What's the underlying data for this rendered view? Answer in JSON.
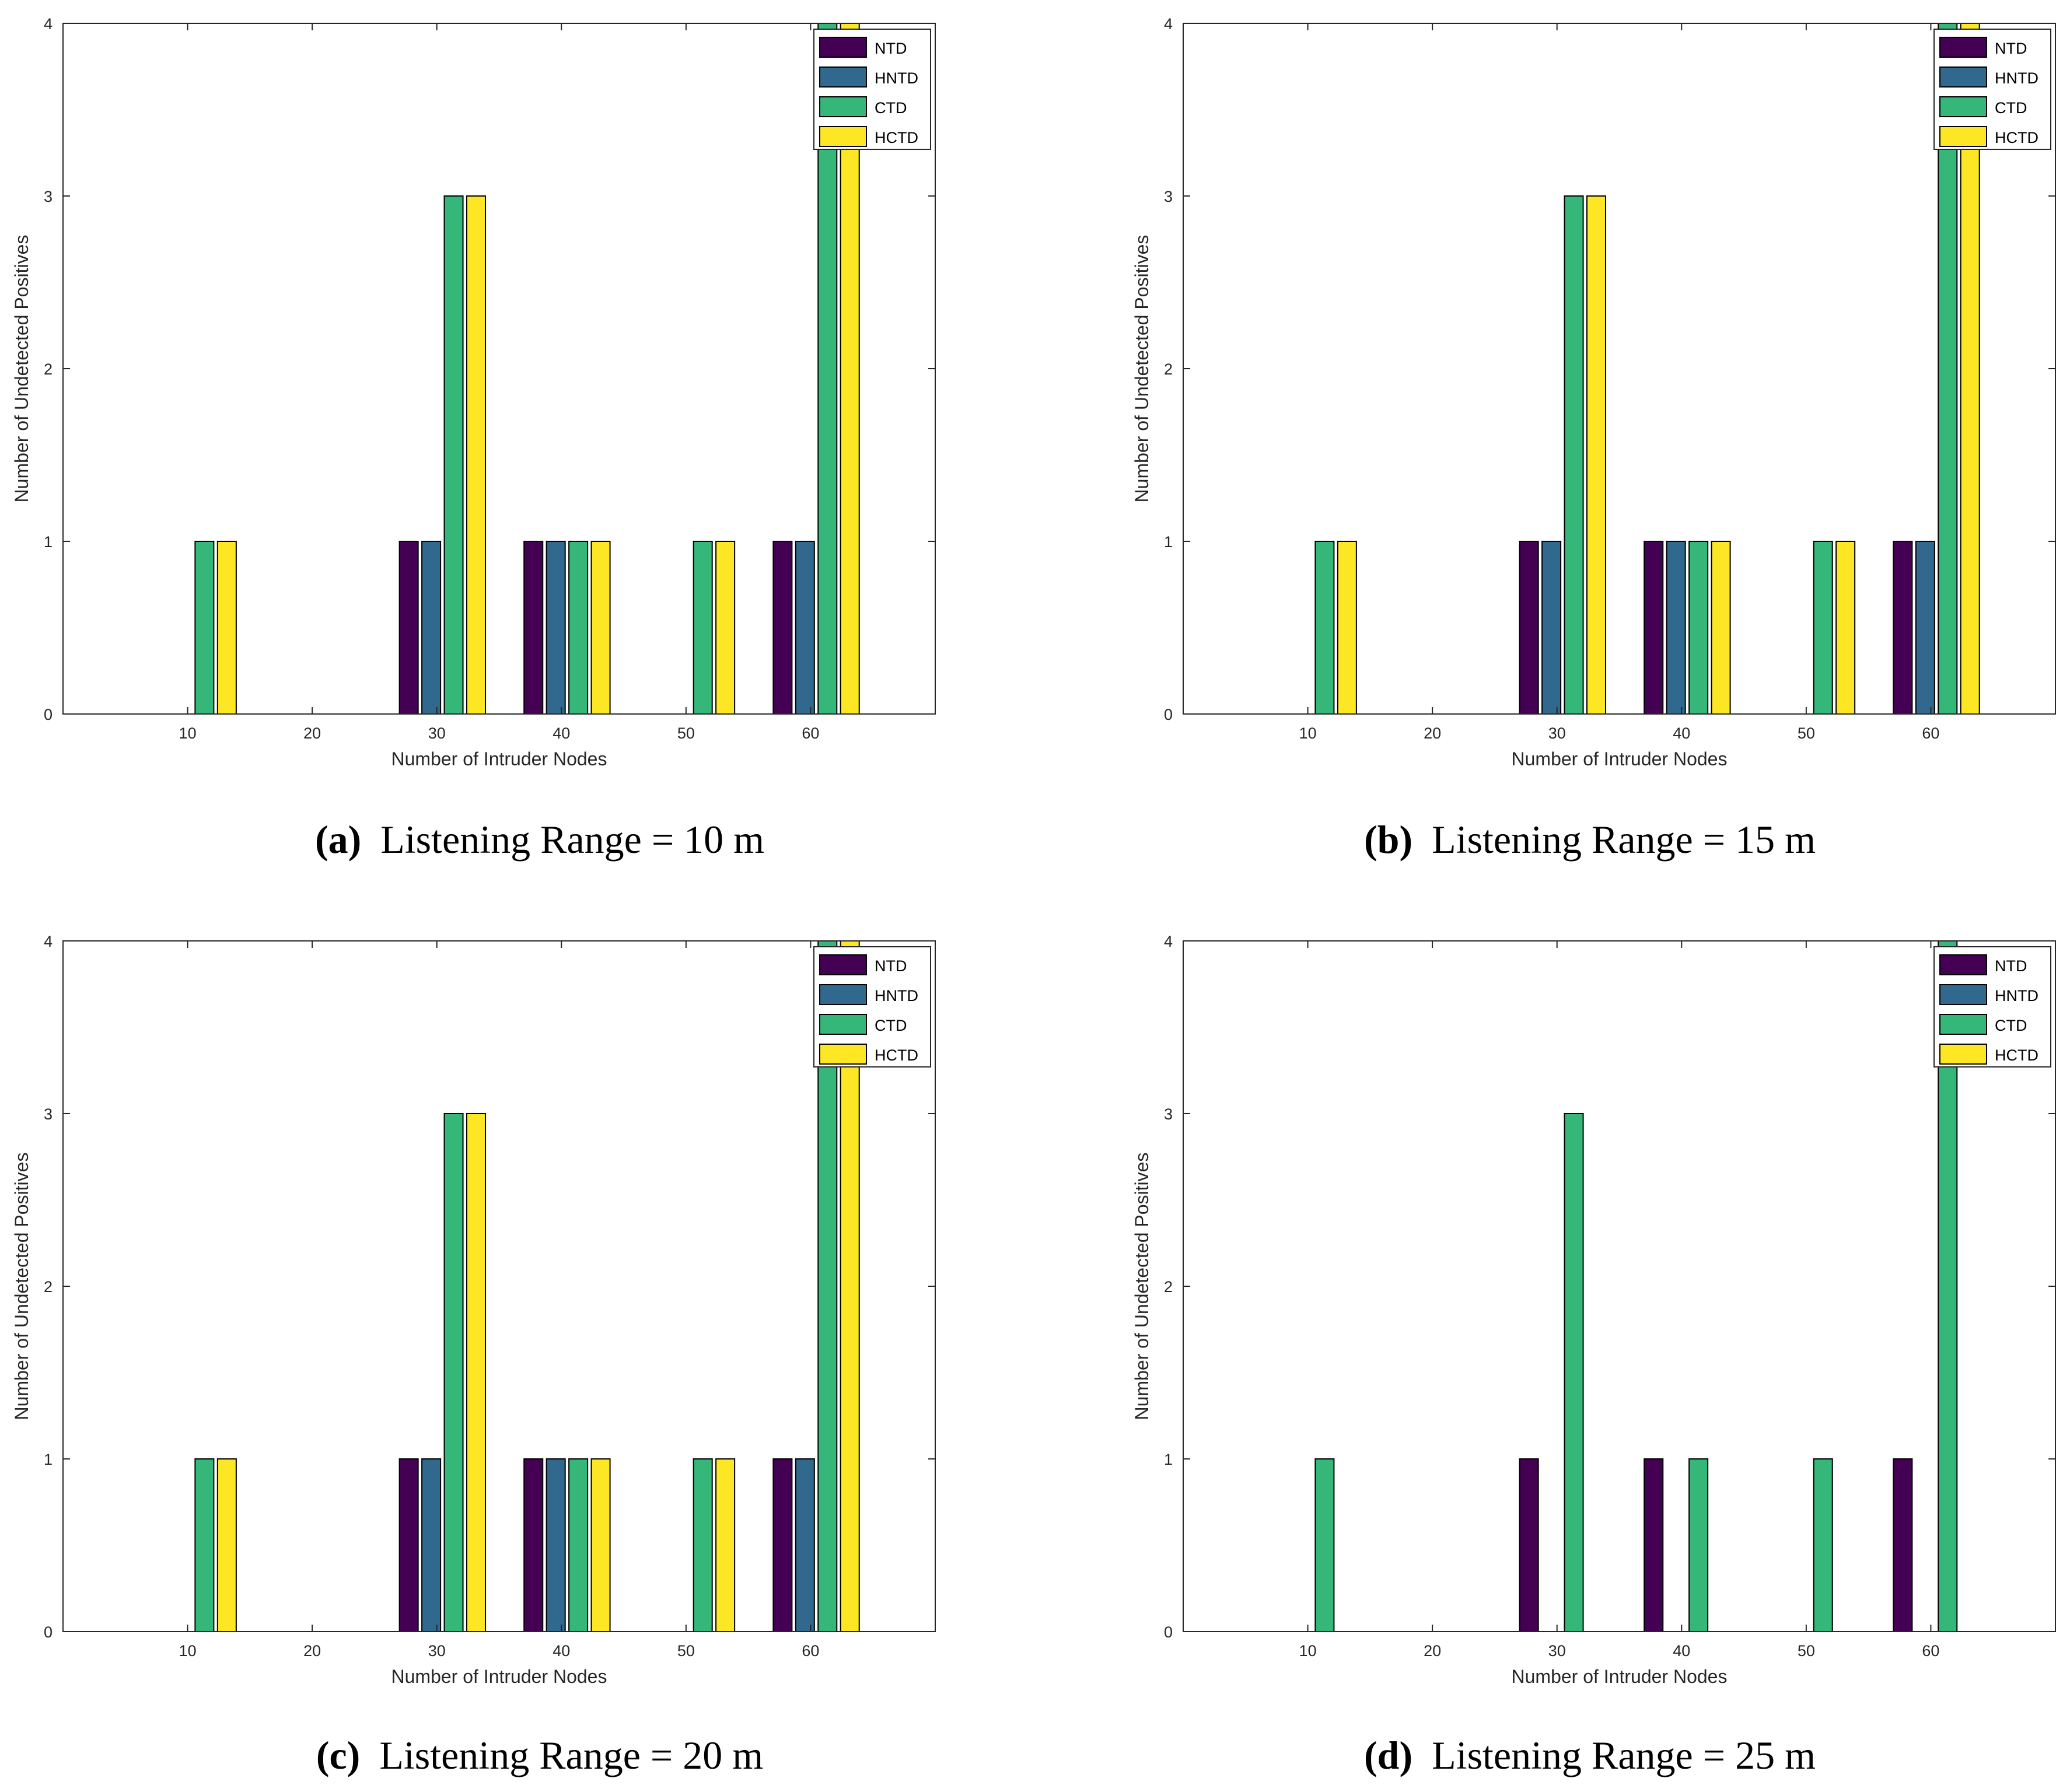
{
  "figure": {
    "panels": [
      {
        "label": "(a)",
        "caption": "Listening Range = 10 m"
      },
      {
        "label": "(b)",
        "caption": "Listening Range = 15 m"
      },
      {
        "label": "(c)",
        "caption": "Listening Range = 20 m"
      },
      {
        "label": "(d)",
        "caption": "Listening Range = 25 m"
      }
    ]
  },
  "colors": {
    "NTD": "#440154",
    "HNTD": "#31688e",
    "CTD": "#35b779",
    "HCTD": "#fde725"
  },
  "chart_data": [
    {
      "type": "bar",
      "title": "",
      "xlabel": "Number of Intruder Nodes",
      "ylabel": "Number of Undetected Positives",
      "categories": [
        10,
        20,
        30,
        40,
        50,
        60
      ],
      "xlim": [
        0,
        70
      ],
      "ylim": [
        0,
        4
      ],
      "yticks": [
        0,
        1,
        2,
        3,
        4
      ],
      "legend_position": "top-right",
      "series": [
        {
          "name": "NTD",
          "values": [
            0,
            0,
            1,
            1,
            0,
            1
          ]
        },
        {
          "name": "HNTD",
          "values": [
            0,
            0,
            1,
            1,
            0,
            1
          ]
        },
        {
          "name": "CTD",
          "values": [
            1,
            0,
            3,
            1,
            1,
            4
          ]
        },
        {
          "name": "HCTD",
          "values": [
            1,
            0,
            3,
            1,
            1,
            4
          ]
        }
      ]
    },
    {
      "type": "bar",
      "title": "",
      "xlabel": "Number of Intruder Nodes",
      "ylabel": "Number of Undetected Positives",
      "categories": [
        10,
        20,
        30,
        40,
        50,
        60
      ],
      "xlim": [
        0,
        70
      ],
      "ylim": [
        0,
        4
      ],
      "yticks": [
        0,
        1,
        2,
        3,
        4
      ],
      "legend_position": "top-right",
      "series": [
        {
          "name": "NTD",
          "values": [
            0,
            0,
            1,
            1,
            0,
            1
          ]
        },
        {
          "name": "HNTD",
          "values": [
            0,
            0,
            1,
            1,
            0,
            1
          ]
        },
        {
          "name": "CTD",
          "values": [
            1,
            0,
            3,
            1,
            1,
            4
          ]
        },
        {
          "name": "HCTD",
          "values": [
            1,
            0,
            3,
            1,
            1,
            4
          ]
        }
      ]
    },
    {
      "type": "bar",
      "title": "",
      "xlabel": "Number of Intruder Nodes",
      "ylabel": "Number of Undetected Positives",
      "categories": [
        10,
        20,
        30,
        40,
        50,
        60
      ],
      "xlim": [
        0,
        70
      ],
      "ylim": [
        0,
        4
      ],
      "yticks": [
        0,
        1,
        2,
        3,
        4
      ],
      "legend_position": "top-right",
      "series": [
        {
          "name": "NTD",
          "values": [
            0,
            0,
            1,
            1,
            0,
            1
          ]
        },
        {
          "name": "HNTD",
          "values": [
            0,
            0,
            1,
            1,
            0,
            1
          ]
        },
        {
          "name": "CTD",
          "values": [
            1,
            0,
            3,
            1,
            1,
            4
          ]
        },
        {
          "name": "HCTD",
          "values": [
            1,
            0,
            3,
            1,
            1,
            4
          ]
        }
      ]
    },
    {
      "type": "bar",
      "title": "",
      "xlabel": "Number of Intruder Nodes",
      "ylabel": "Number of Undetected Positives",
      "categories": [
        10,
        20,
        30,
        40,
        50,
        60
      ],
      "xlim": [
        0,
        70
      ],
      "ylim": [
        0,
        4
      ],
      "yticks": [
        0,
        1,
        2,
        3,
        4
      ],
      "legend_position": "top-right",
      "series": [
        {
          "name": "NTD",
          "values": [
            0,
            0,
            1,
            1,
            0,
            1
          ]
        },
        {
          "name": "HNTD",
          "values": [
            0,
            0,
            0,
            0,
            0,
            0
          ]
        },
        {
          "name": "CTD",
          "values": [
            1,
            0,
            3,
            1,
            1,
            4
          ]
        },
        {
          "name": "HCTD",
          "values": [
            0,
            0,
            0,
            0,
            0,
            0
          ]
        }
      ]
    }
  ]
}
